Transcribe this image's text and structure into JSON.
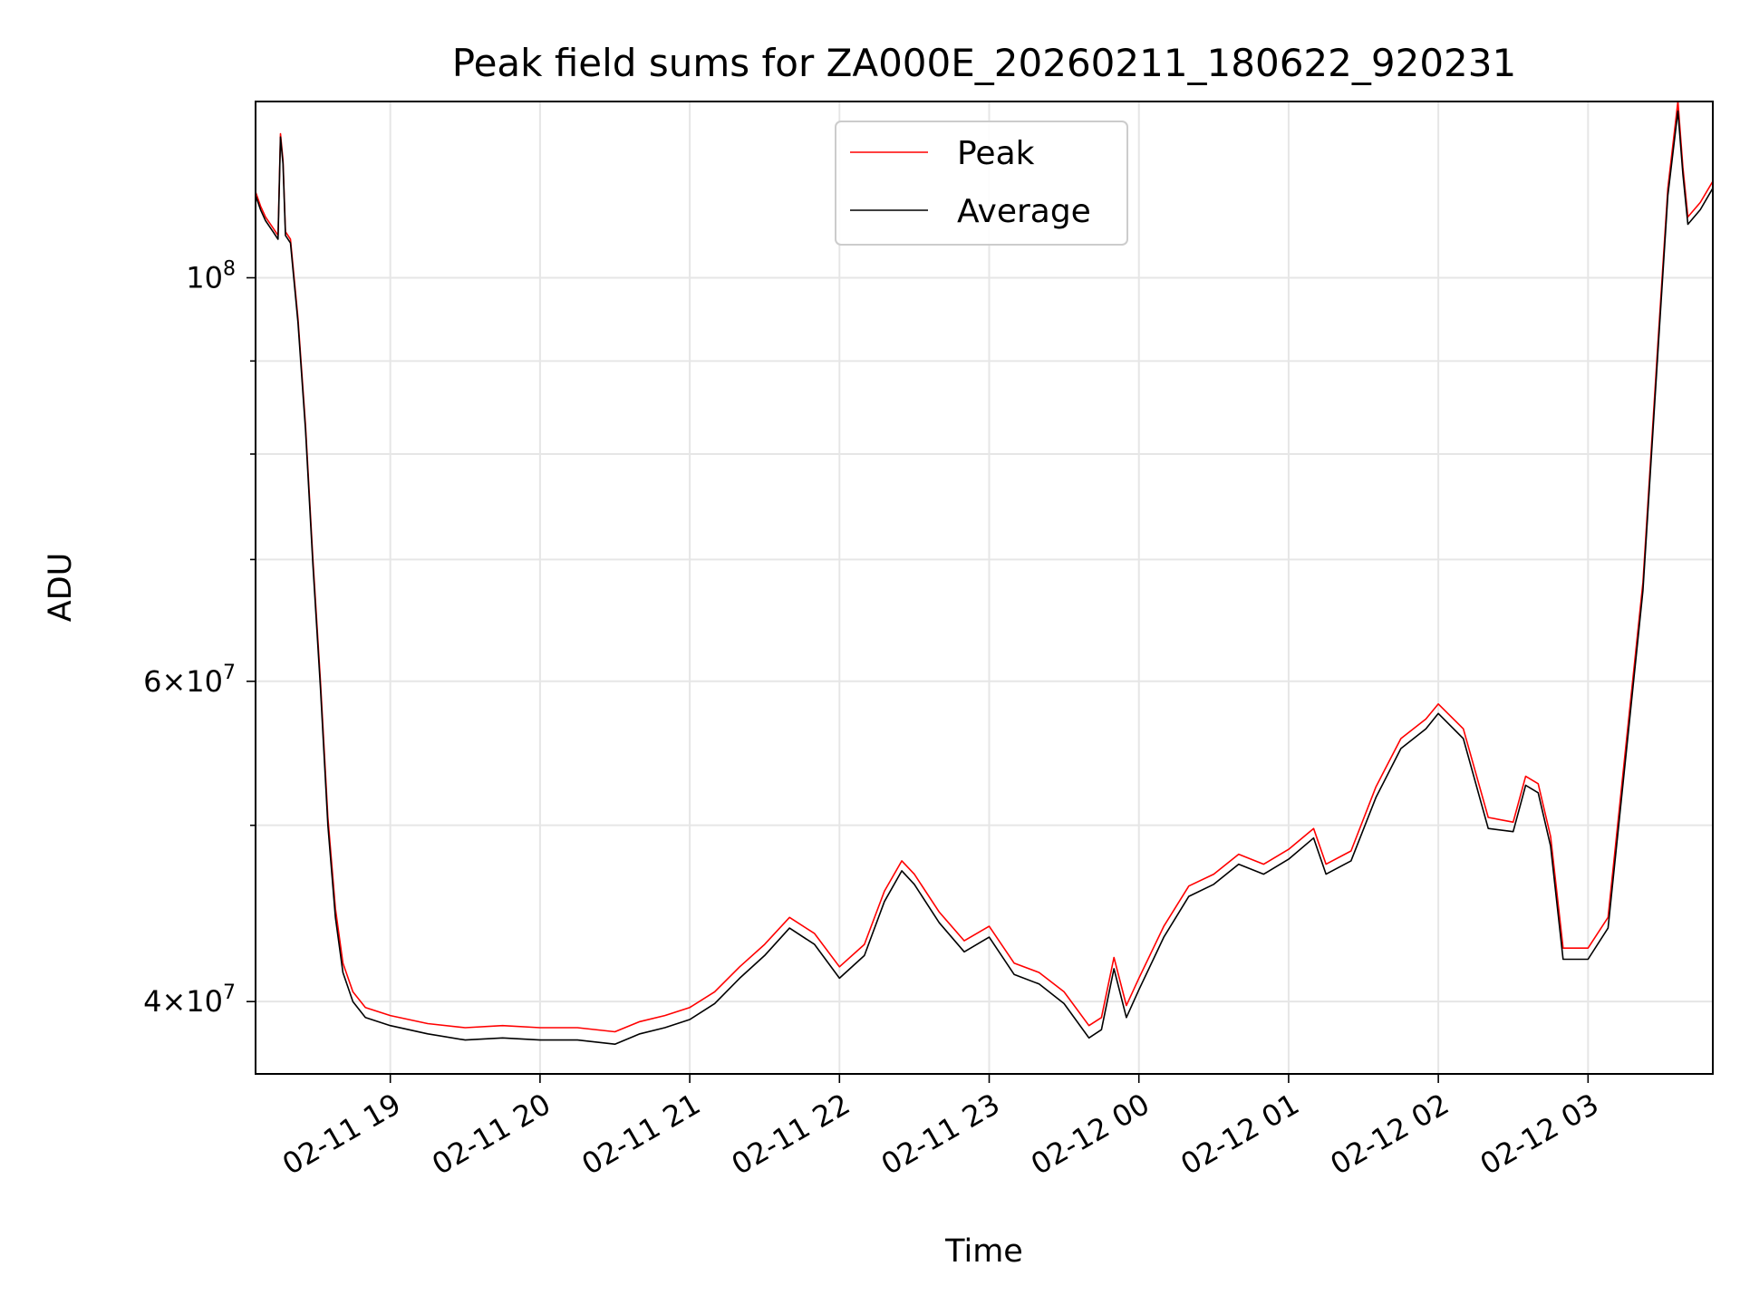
{
  "chart_data": {
    "type": "line",
    "title": "Peak field sums for ZA000E_20260211_180622_920231",
    "xlabel": "Time",
    "ylabel": "ADU",
    "yscale": "log",
    "grid": true,
    "legend_placement": "upper center",
    "xlim": [
      "2026-02-11 18:06",
      "2026-02-12 03:50"
    ],
    "ylim": [
      36500000,
      125000000
    ],
    "x_ticks": [
      {
        "value": "2026-02-11 19:00",
        "label": "02-11 19"
      },
      {
        "value": "2026-02-11 20:00",
        "label": "02-11 20"
      },
      {
        "value": "2026-02-11 21:00",
        "label": "02-11 21"
      },
      {
        "value": "2026-02-11 22:00",
        "label": "02-11 22"
      },
      {
        "value": "2026-02-11 23:00",
        "label": "02-11 23"
      },
      {
        "value": "2026-02-12 00:00",
        "label": "02-12 00"
      },
      {
        "value": "2026-02-12 01:00",
        "label": "02-12 01"
      },
      {
        "value": "2026-02-12 02:00",
        "label": "02-12 02"
      },
      {
        "value": "2026-02-12 03:00",
        "label": "02-12 03"
      }
    ],
    "y_major_ticks": [
      {
        "value": 40000000,
        "base": "4×10",
        "exp": "7"
      },
      {
        "value": 60000000,
        "base": "6×10",
        "exp": "7"
      },
      {
        "value": 100000000,
        "base": "10",
        "exp": "8"
      }
    ],
    "y_minor_ticks": [
      50000000,
      70000000,
      80000000,
      90000000
    ],
    "series": [
      {
        "name": "Peak",
        "color": "#ff0000",
        "points": [
          [
            "2026-02-11 18:06",
            111500000
          ],
          [
            "2026-02-11 18:08",
            109500000
          ],
          [
            "2026-02-11 18:10",
            108000000
          ],
          [
            "2026-02-11 18:13",
            106500000
          ],
          [
            "2026-02-11 18:15",
            105500000
          ],
          [
            "2026-02-11 18:16",
            120000000
          ],
          [
            "2026-02-11 18:17",
            116000000
          ],
          [
            "2026-02-11 18:18",
            106000000
          ],
          [
            "2026-02-11 18:20",
            105000000
          ],
          [
            "2026-02-11 18:23",
            95000000
          ],
          [
            "2026-02-11 18:26",
            83000000
          ],
          [
            "2026-02-11 18:29",
            70000000
          ],
          [
            "2026-02-11 18:32",
            60000000
          ],
          [
            "2026-02-11 18:35",
            50500000
          ],
          [
            "2026-02-11 18:38",
            45000000
          ],
          [
            "2026-02-11 18:41",
            42000000
          ],
          [
            "2026-02-11 18:45",
            40500000
          ],
          [
            "2026-02-11 18:50",
            39700000
          ],
          [
            "2026-02-11 19:00",
            39300000
          ],
          [
            "2026-02-11 19:15",
            38900000
          ],
          [
            "2026-02-11 19:30",
            38700000
          ],
          [
            "2026-02-11 19:45",
            38800000
          ],
          [
            "2026-02-11 20:00",
            38700000
          ],
          [
            "2026-02-11 20:15",
            38700000
          ],
          [
            "2026-02-11 20:30",
            38500000
          ],
          [
            "2026-02-11 20:40",
            39000000
          ],
          [
            "2026-02-11 20:50",
            39300000
          ],
          [
            "2026-02-11 21:00",
            39700000
          ],
          [
            "2026-02-11 21:10",
            40500000
          ],
          [
            "2026-02-11 21:20",
            41800000
          ],
          [
            "2026-02-11 21:30",
            43000000
          ],
          [
            "2026-02-11 21:40",
            44500000
          ],
          [
            "2026-02-11 21:50",
            43600000
          ],
          [
            "2026-02-11 22:00",
            41800000
          ],
          [
            "2026-02-11 22:10",
            43000000
          ],
          [
            "2026-02-11 22:18",
            46000000
          ],
          [
            "2026-02-11 22:25",
            47800000
          ],
          [
            "2026-02-11 22:30",
            47000000
          ],
          [
            "2026-02-11 22:40",
            44800000
          ],
          [
            "2026-02-11 22:50",
            43200000
          ],
          [
            "2026-02-11 23:00",
            44000000
          ],
          [
            "2026-02-11 23:10",
            42000000
          ],
          [
            "2026-02-11 23:20",
            41500000
          ],
          [
            "2026-02-11 23:30",
            40500000
          ],
          [
            "2026-02-11 23:40",
            38800000
          ],
          [
            "2026-02-11 23:45",
            39200000
          ],
          [
            "2026-02-11 23:50",
            42300000
          ],
          [
            "2026-02-11 23:55",
            39800000
          ],
          [
            "2026-02-12 00:00",
            41200000
          ],
          [
            "2026-02-12 00:10",
            44000000
          ],
          [
            "2026-02-12 00:20",
            46300000
          ],
          [
            "2026-02-12 00:30",
            47000000
          ],
          [
            "2026-02-12 00:40",
            48200000
          ],
          [
            "2026-02-12 00:50",
            47600000
          ],
          [
            "2026-02-12 01:00",
            48500000
          ],
          [
            "2026-02-12 01:10",
            49800000
          ],
          [
            "2026-02-12 01:15",
            47600000
          ],
          [
            "2026-02-12 01:25",
            48400000
          ],
          [
            "2026-02-12 01:35",
            52500000
          ],
          [
            "2026-02-12 01:45",
            55800000
          ],
          [
            "2026-02-12 01:55",
            57200000
          ],
          [
            "2026-02-12 02:00",
            58300000
          ],
          [
            "2026-02-12 02:10",
            56500000
          ],
          [
            "2026-02-12 02:20",
            50500000
          ],
          [
            "2026-02-12 02:30",
            50200000
          ],
          [
            "2026-02-12 02:35",
            53200000
          ],
          [
            "2026-02-12 02:40",
            52700000
          ],
          [
            "2026-02-12 02:45",
            49300000
          ],
          [
            "2026-02-12 02:50",
            42800000
          ],
          [
            "2026-02-12 03:00",
            42800000
          ],
          [
            "2026-02-12 03:08",
            44500000
          ],
          [
            "2026-02-12 03:15",
            55000000
          ],
          [
            "2026-02-12 03:22",
            68000000
          ],
          [
            "2026-02-12 03:28",
            92000000
          ],
          [
            "2026-02-12 03:32",
            112000000
          ],
          [
            "2026-02-12 03:36",
            125000000
          ],
          [
            "2026-02-12 03:38",
            115000000
          ],
          [
            "2026-02-12 03:40",
            108000000
          ],
          [
            "2026-02-12 03:45",
            110000000
          ],
          [
            "2026-02-12 03:50",
            113000000
          ]
        ]
      },
      {
        "name": "Average",
        "color": "#000000",
        "points": [
          [
            "2026-02-11 18:06",
            111000000
          ],
          [
            "2026-02-11 18:08",
            109000000
          ],
          [
            "2026-02-11 18:10",
            107500000
          ],
          [
            "2026-02-11 18:13",
            106000000
          ],
          [
            "2026-02-11 18:15",
            105000000
          ],
          [
            "2026-02-11 18:16",
            119500000
          ],
          [
            "2026-02-11 18:17",
            115500000
          ],
          [
            "2026-02-11 18:18",
            105500000
          ],
          [
            "2026-02-11 18:20",
            104500000
          ],
          [
            "2026-02-11 18:23",
            94500000
          ],
          [
            "2026-02-11 18:26",
            82500000
          ],
          [
            "2026-02-11 18:29",
            69500000
          ],
          [
            "2026-02-11 18:32",
            59500000
          ],
          [
            "2026-02-11 18:35",
            50000000
          ],
          [
            "2026-02-11 18:38",
            44500000
          ],
          [
            "2026-02-11 18:41",
            41500000
          ],
          [
            "2026-02-11 18:45",
            40000000
          ],
          [
            "2026-02-11 18:50",
            39200000
          ],
          [
            "2026-02-11 19:00",
            38800000
          ],
          [
            "2026-02-11 19:15",
            38400000
          ],
          [
            "2026-02-11 19:30",
            38100000
          ],
          [
            "2026-02-11 19:45",
            38200000
          ],
          [
            "2026-02-11 20:00",
            38100000
          ],
          [
            "2026-02-11 20:15",
            38100000
          ],
          [
            "2026-02-11 20:30",
            37900000
          ],
          [
            "2026-02-11 20:40",
            38400000
          ],
          [
            "2026-02-11 20:50",
            38700000
          ],
          [
            "2026-02-11 21:00",
            39100000
          ],
          [
            "2026-02-11 21:10",
            39900000
          ],
          [
            "2026-02-11 21:20",
            41200000
          ],
          [
            "2026-02-11 21:30",
            42400000
          ],
          [
            "2026-02-11 21:40",
            43900000
          ],
          [
            "2026-02-11 21:50",
            43000000
          ],
          [
            "2026-02-11 22:00",
            41200000
          ],
          [
            "2026-02-11 22:10",
            42400000
          ],
          [
            "2026-02-11 22:18",
            45400000
          ],
          [
            "2026-02-11 22:25",
            47200000
          ],
          [
            "2026-02-11 22:30",
            46400000
          ],
          [
            "2026-02-11 22:40",
            44200000
          ],
          [
            "2026-02-11 22:50",
            42600000
          ],
          [
            "2026-02-11 23:00",
            43400000
          ],
          [
            "2026-02-11 23:10",
            41400000
          ],
          [
            "2026-02-11 23:20",
            40900000
          ],
          [
            "2026-02-11 23:30",
            39900000
          ],
          [
            "2026-02-11 23:40",
            38200000
          ],
          [
            "2026-02-11 23:45",
            38600000
          ],
          [
            "2026-02-11 23:50",
            41700000
          ],
          [
            "2026-02-11 23:55",
            39200000
          ],
          [
            "2026-02-12 00:00",
            40600000
          ],
          [
            "2026-02-12 00:10",
            43400000
          ],
          [
            "2026-02-12 00:20",
            45700000
          ],
          [
            "2026-02-12 00:30",
            46400000
          ],
          [
            "2026-02-12 00:40",
            47600000
          ],
          [
            "2026-02-12 00:50",
            47000000
          ],
          [
            "2026-02-12 01:00",
            47900000
          ],
          [
            "2026-02-12 01:10",
            49200000
          ],
          [
            "2026-02-12 01:15",
            47000000
          ],
          [
            "2026-02-12 01:25",
            47800000
          ],
          [
            "2026-02-12 01:35",
            51800000
          ],
          [
            "2026-02-12 01:45",
            55100000
          ],
          [
            "2026-02-12 01:55",
            56500000
          ],
          [
            "2026-02-12 02:00",
            57600000
          ],
          [
            "2026-02-12 02:10",
            55800000
          ],
          [
            "2026-02-12 02:20",
            49800000
          ],
          [
            "2026-02-12 02:30",
            49600000
          ],
          [
            "2026-02-12 02:35",
            52600000
          ],
          [
            "2026-02-12 02:40",
            52100000
          ],
          [
            "2026-02-12 02:45",
            48700000
          ],
          [
            "2026-02-12 02:50",
            42200000
          ],
          [
            "2026-02-12 03:00",
            42200000
          ],
          [
            "2026-02-12 03:08",
            43900000
          ],
          [
            "2026-02-12 03:15",
            54300000
          ],
          [
            "2026-02-12 03:22",
            67300000
          ],
          [
            "2026-02-12 03:28",
            91000000
          ],
          [
            "2026-02-12 03:32",
            111000000
          ],
          [
            "2026-02-12 03:36",
            123500000
          ],
          [
            "2026-02-12 03:38",
            114000000
          ],
          [
            "2026-02-12 03:40",
            107000000
          ],
          [
            "2026-02-12 03:45",
            109000000
          ],
          [
            "2026-02-12 03:50",
            112000000
          ]
        ]
      }
    ]
  }
}
